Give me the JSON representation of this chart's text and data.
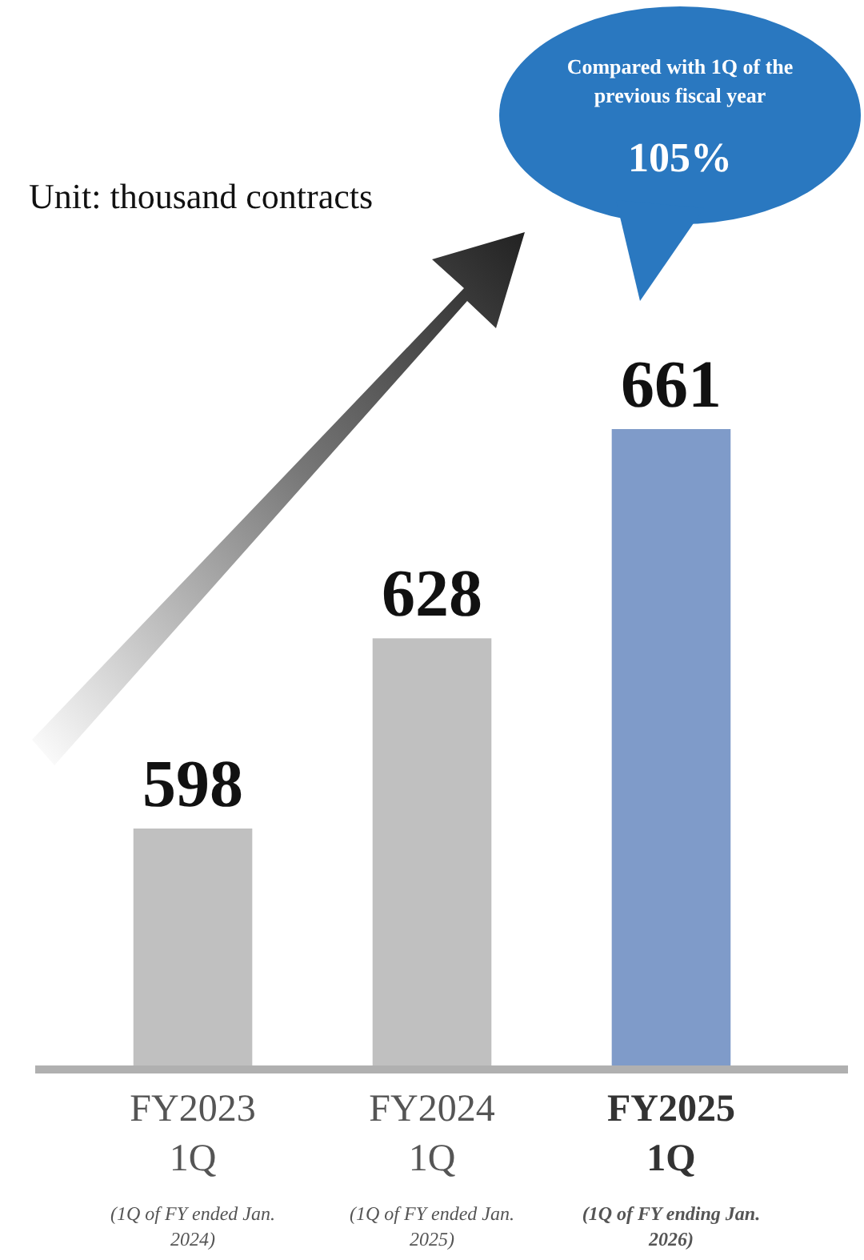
{
  "chart_data": {
    "type": "bar",
    "categories": [
      "FY2023 1Q",
      "FY2024 1Q",
      "FY2025 1Q"
    ],
    "values": [
      598,
      628,
      661
    ],
    "colors": [
      "#c0c0c0",
      "#c0c0c0",
      "#7f9bc9"
    ],
    "ylim": [
      560,
      661
    ],
    "tick_labels": "x",
    "data_labels": true,
    "annotations": [
      {
        "text": "Unit: thousand contracts"
      },
      {
        "text": "Compared with 1Q of the previous fiscal year"
      },
      {
        "text": "105%"
      },
      "(1Q of FY ended Jan. 2024)",
      "(1Q of FY ended Jan. 2025)",
      "(1Q of FY ending Jan. 2026)"
    ]
  }
}
